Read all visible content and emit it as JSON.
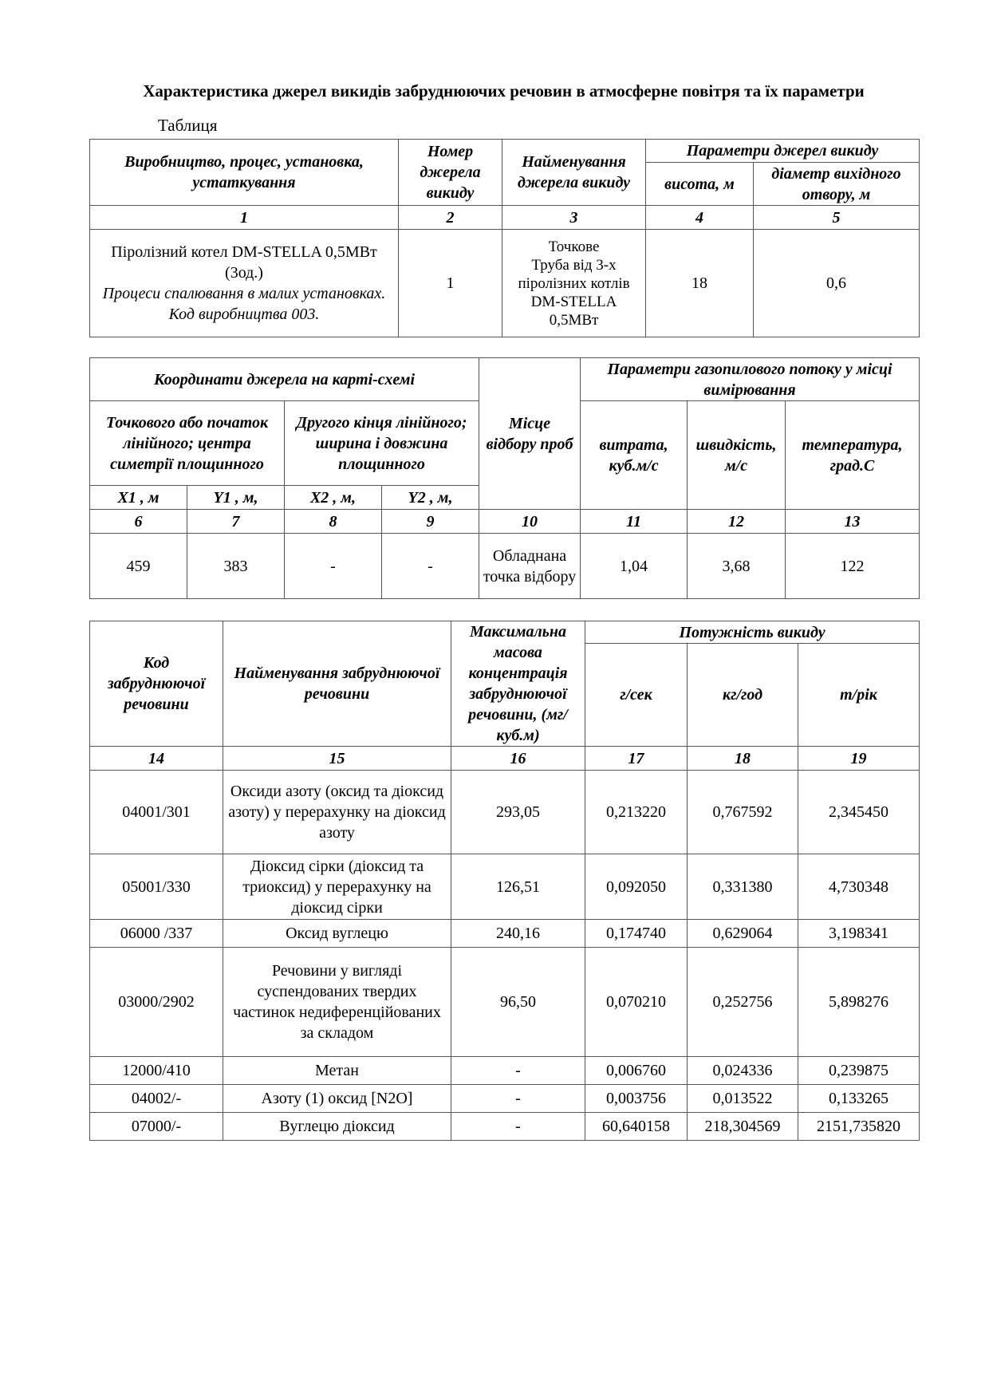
{
  "title": "Характеристика джерел викидів забруднюючих речовин в атмосферне повітря та їх параметри",
  "table_label": "Таблиця",
  "table1": {
    "headers": {
      "c1": "Виробництво, процес, установка, устаткування",
      "c2": "Номер джерела викиду",
      "c3": "Найменування джерела викиду",
      "group": "Параметри джерел викиду",
      "c4": "висота, м",
      "c5": "діаметр вихідного отвору, м"
    },
    "numbers": [
      "1",
      "2",
      "3",
      "4",
      "5"
    ],
    "row": {
      "c1_line1": "Піролізний котел DM-STELLA 0,5МВт (3од.)",
      "c1_line2": "Процеси спалювання в малих установках.",
      "c1_line3": "Код виробництва 003.",
      "c2": "1",
      "c3_line1": "Точкове",
      "c3_line2": "Труба від 3-х піролізних котлів DM-STELLA 0,5МВт",
      "c4": "18",
      "c5": "0,6"
    }
  },
  "table2": {
    "headers": {
      "coords": "Координати джерела на карті-схемі",
      "point": "Точкового або початок лінійного; центра симетрії площинного",
      "other": "Другого кінця лінійного; ширина і довжина площинного",
      "place": "Місце відбору проб",
      "flow": "Параметри газопилового потоку у місці вимірювання",
      "rate": "витрата, куб.м/с",
      "speed": "швидкість, м/с",
      "temp": "температура, град.С",
      "x1": "X1 , м",
      "y1": "Y1 , м,",
      "x2": "X2 , м,",
      "y2": "Y2 , м,"
    },
    "numbers": [
      "6",
      "7",
      "8",
      "9",
      "10",
      "11",
      "12",
      "13"
    ],
    "row": [
      "459",
      "383",
      "-",
      "-",
      "Обладнана точка відбору",
      "1,04",
      "3,68",
      "122"
    ]
  },
  "table3": {
    "headers": {
      "code": "Код забруднюючої речовини",
      "name": "Найменування забруднюючої речовини",
      "conc": "Максимальна масова концентрація забруднюючої речовини, (мг/куб.м)",
      "power": "Потужність викиду",
      "gs": "г/сек",
      "kgh": "кг/год",
      "ty": "т/рік"
    },
    "numbers": [
      "14",
      "15",
      "16",
      "17",
      "18",
      "19"
    ],
    "rows": [
      [
        "04001/301",
        "Оксиди азоту (оксид та діоксид азоту) у перерахунку на діоксид азоту",
        "293,05",
        "0,213220",
        "0,767592",
        "2,345450"
      ],
      [
        "05001/330",
        "Діоксид сірки (діоксид та триоксид) у перерахунку на діоксид сірки",
        "126,51",
        "0,092050",
        "0,331380",
        "4,730348"
      ],
      [
        "06000 /337",
        "Оксид вуглецю",
        "240,16",
        "0,174740",
        "0,629064",
        "3,198341"
      ],
      [
        "03000/2902",
        "Речовини у вигляді суспендованих твердих частинок недиференційованих за складом",
        "96,50",
        "0,070210",
        "0,252756",
        "5,898276"
      ],
      [
        "12000/410",
        "Метан",
        "-",
        "0,006760",
        "0,024336",
        "0,239875"
      ],
      [
        "04002/-",
        "Азоту (1) оксид [N2O]",
        "-",
        "0,003756",
        "0,013522",
        "0,133265"
      ],
      [
        "07000/-",
        "Вуглецю діоксид",
        "-",
        "60,640158",
        "218,304569",
        "2151,735820"
      ]
    ]
  }
}
